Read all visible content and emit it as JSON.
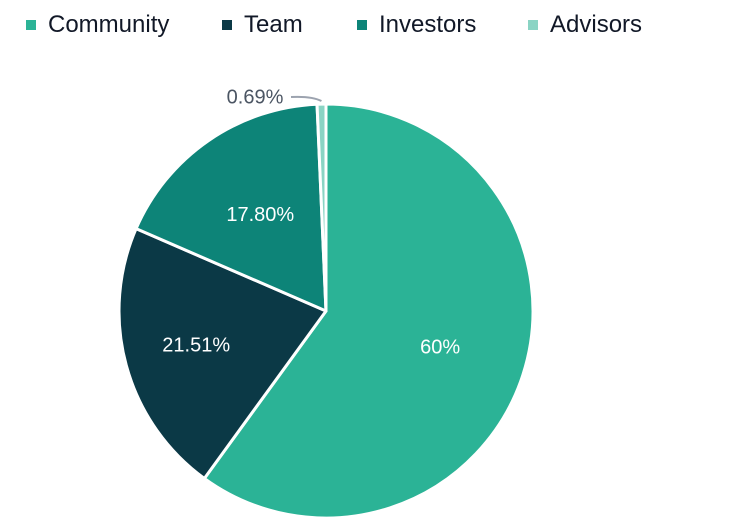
{
  "chart_data": {
    "type": "pie",
    "title": "",
    "legend_position": "top",
    "categories": [
      "Community",
      "Team",
      "Investors",
      "Advisors"
    ],
    "values": [
      60,
      21.51,
      17.8,
      0.69
    ],
    "data_labels": [
      "60%",
      "21.51%",
      "17.80%",
      "0.69%"
    ],
    "colors": [
      "#2bb396",
      "#0b3946",
      "#0d8478",
      "#8ad4c4"
    ],
    "start_angle_degrees_clockwise_from_top": 0
  }
}
